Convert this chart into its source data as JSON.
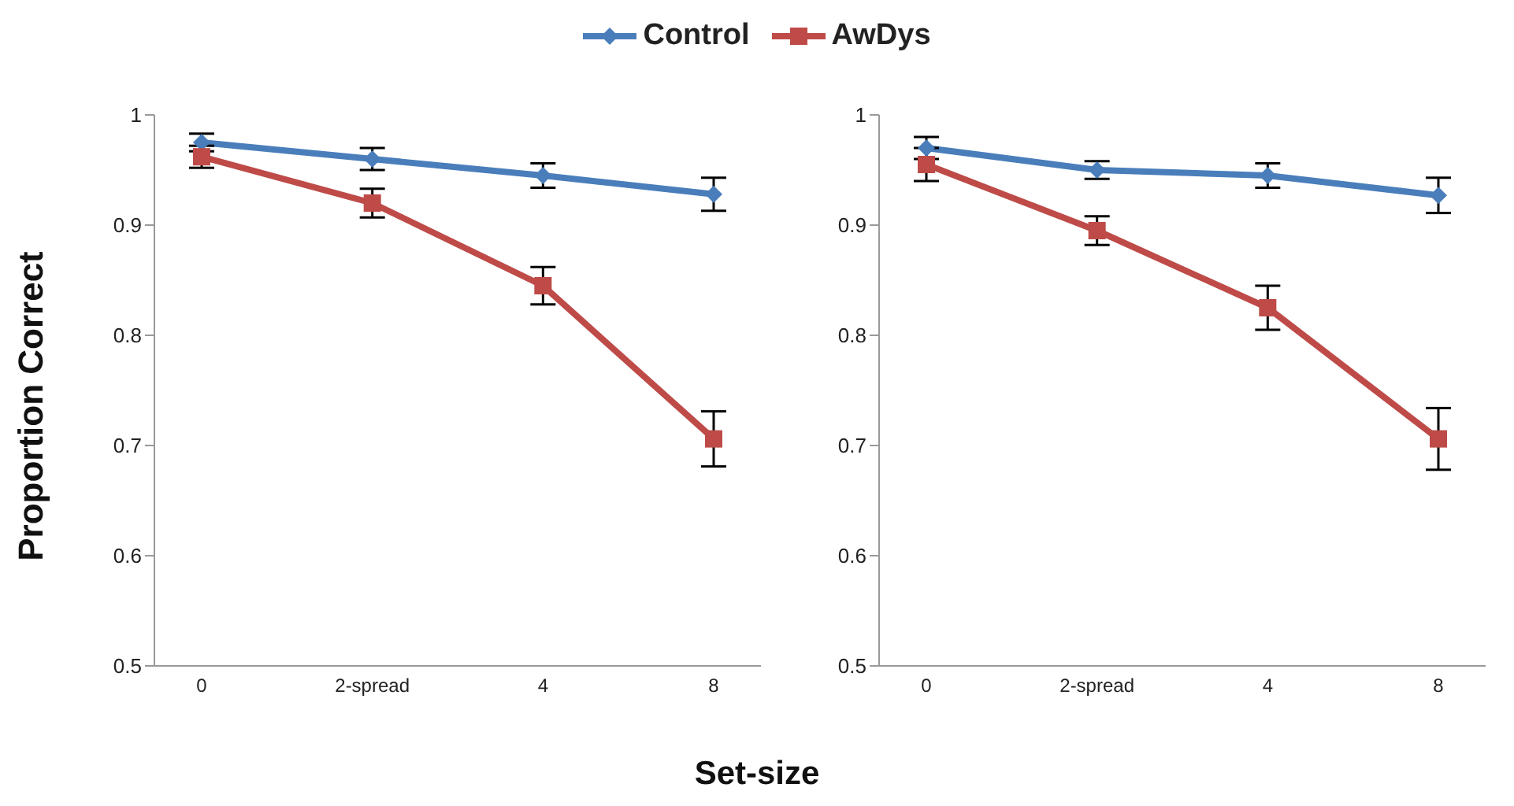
{
  "chart_data": [
    {
      "type": "line",
      "ylabel": "Proportion Correct",
      "xlabel": "Set-size",
      "legend": "top",
      "categories": [
        "0",
        "2-spread",
        "4",
        "8"
      ],
      "ylim": [
        0.5,
        1
      ],
      "yticks": [
        0.5,
        0.6,
        0.7,
        0.8,
        0.9,
        1
      ],
      "series": [
        {
          "name": "Control",
          "color": "#4a7ebb",
          "marker": "diamond",
          "values": [
            0.975,
            0.96,
            0.945,
            0.928
          ],
          "errors": [
            0.008,
            0.01,
            0.011,
            0.015
          ]
        },
        {
          "name": "AwDys",
          "color": "#be4b48",
          "marker": "square",
          "values": [
            0.962,
            0.92,
            0.845,
            0.706
          ],
          "errors": [
            0.01,
            0.013,
            0.017,
            0.025
          ]
        }
      ]
    },
    {
      "type": "line",
      "categories": [
        "0",
        "2-spread",
        "4",
        "8"
      ],
      "ylim": [
        0.5,
        1
      ],
      "yticks": [
        0.5,
        0.6,
        0.7,
        0.8,
        0.9,
        1
      ],
      "series": [
        {
          "color": "#4a7ebb",
          "marker": "diamond",
          "values": [
            0.97,
            0.95,
            0.945,
            0.927
          ],
          "errors": [
            0.01,
            0.008,
            0.011,
            0.016
          ]
        },
        {
          "color": "#be4b48",
          "marker": "square",
          "values": [
            0.955,
            0.895,
            0.825,
            0.706
          ],
          "errors": [
            0.015,
            0.013,
            0.02,
            0.028
          ]
        }
      ]
    }
  ]
}
